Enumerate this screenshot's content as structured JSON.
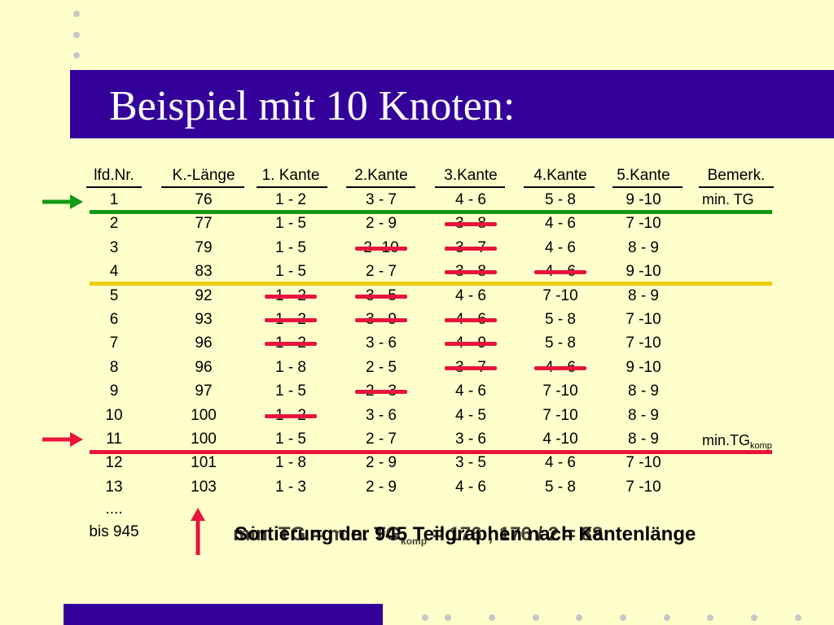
{
  "title": "Beispiel mit 10 Knoten:",
  "table": {
    "headers": [
      "lfd.Nr.",
      "K.-Länge",
      "1. Kante",
      "2.Kante",
      "3.Kante",
      "4.Kante",
      "5.Kante",
      "Bemerk."
    ],
    "rows": [
      [
        "1",
        "76",
        "1 - 2",
        "3 - 7",
        "4 - 6",
        "5 - 8",
        "9 -10"
      ],
      [
        "2",
        "77",
        "1 - 5",
        "2 - 9",
        "3 - 8",
        "4 - 6",
        "7 -10"
      ],
      [
        "3",
        "79",
        "1 - 5",
        "2 -10",
        "3 - 7",
        "4 - 6",
        "8 - 9"
      ],
      [
        "4",
        "83",
        "1 - 5",
        "2 - 7",
        "3 - 8",
        "4 - 6",
        "9 -10"
      ],
      [
        "5",
        "92",
        "1 - 2",
        "3 - 5",
        "4 - 6",
        "7 -10",
        "8 - 9"
      ],
      [
        "6",
        "93",
        "1 - 2",
        "3 - 9",
        "4 - 6",
        "5 - 8",
        "7 -10"
      ],
      [
        "7",
        "96",
        "1 - 2",
        "3 - 6",
        "4 - 9",
        "5 - 8",
        "7 -10"
      ],
      [
        "8",
        "96",
        "1 - 8",
        "2 - 5",
        "3 - 7",
        "4 - 6",
        "9 -10"
      ],
      [
        "9",
        "97",
        "1 - 5",
        "2 - 3",
        "4 - 6",
        "7 -10",
        "8 - 9"
      ],
      [
        "10",
        "100",
        "1 - 2",
        "3 - 6",
        "4 - 5",
        "7 -10",
        "8 - 9"
      ],
      [
        "11",
        "100",
        "1 - 5",
        "2 - 7",
        "3 - 6",
        "4 -10",
        "8 - 9"
      ],
      [
        "12",
        "101",
        "1 - 8",
        "2 - 9",
        "3 - 5",
        "4 - 6",
        "7 -10"
      ],
      [
        "13",
        "103",
        "1 - 3",
        "2 - 9",
        "4 - 6",
        "5 - 8",
        "7 -10"
      ]
    ],
    "struck_cells": [
      [
        2,
        5
      ],
      [
        3,
        4
      ],
      [
        3,
        5
      ],
      [
        4,
        5
      ],
      [
        4,
        6
      ],
      [
        5,
        3
      ],
      [
        5,
        4
      ],
      [
        6,
        3
      ],
      [
        6,
        4
      ],
      [
        6,
        5
      ],
      [
        7,
        3
      ],
      [
        7,
        5
      ],
      [
        8,
        5
      ],
      [
        8,
        6
      ],
      [
        9,
        4
      ],
      [
        10,
        3
      ]
    ],
    "ellipsis": "....",
    "bis": "bis 945"
  },
  "remarks": {
    "row1": "min. TG",
    "row11_main": "min.TG",
    "row11_sub": "komp"
  },
  "bottom_text": {
    "layer_a": "Sortierung der 945 Teilgraphen nach Kantenlänge",
    "layer_b_main": "min. TG = min. TG",
    "layer_b_sub": "komp",
    "layer_b_rest": " = 176 ; 176 / 2 = 88"
  },
  "colors": {
    "background": "#ffffcc",
    "title_bar": "#330099",
    "green": "#129a12",
    "yellow": "#f0cc00",
    "red": "#e8143c"
  }
}
